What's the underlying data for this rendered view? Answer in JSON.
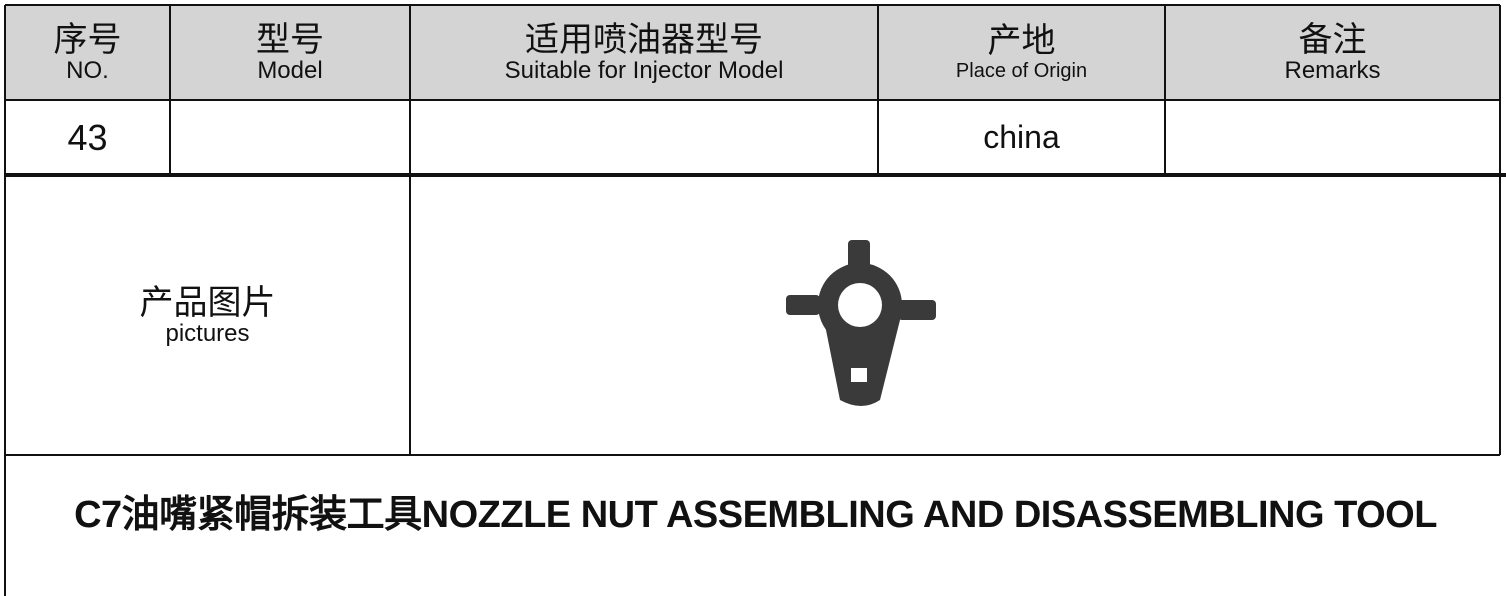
{
  "table": {
    "header": [
      {
        "zh": "序号",
        "en": "NO."
      },
      {
        "zh": "型号",
        "en": "Model"
      },
      {
        "zh": "适用喷油器型号",
        "en": "Suitable for Injector Model"
      },
      {
        "zh": "产地",
        "en": "Place of Origin"
      },
      {
        "zh": "备注",
        "en": "Remarks"
      }
    ],
    "row": {
      "no": "43",
      "origin": "china"
    }
  },
  "picture": {
    "zh": "产品图片",
    "en": "pictures"
  },
  "title": "C7油嘴紧帽拆装工具NOZZLE NUT ASSEMBLING AND DISASSEMBLING TOOL"
}
